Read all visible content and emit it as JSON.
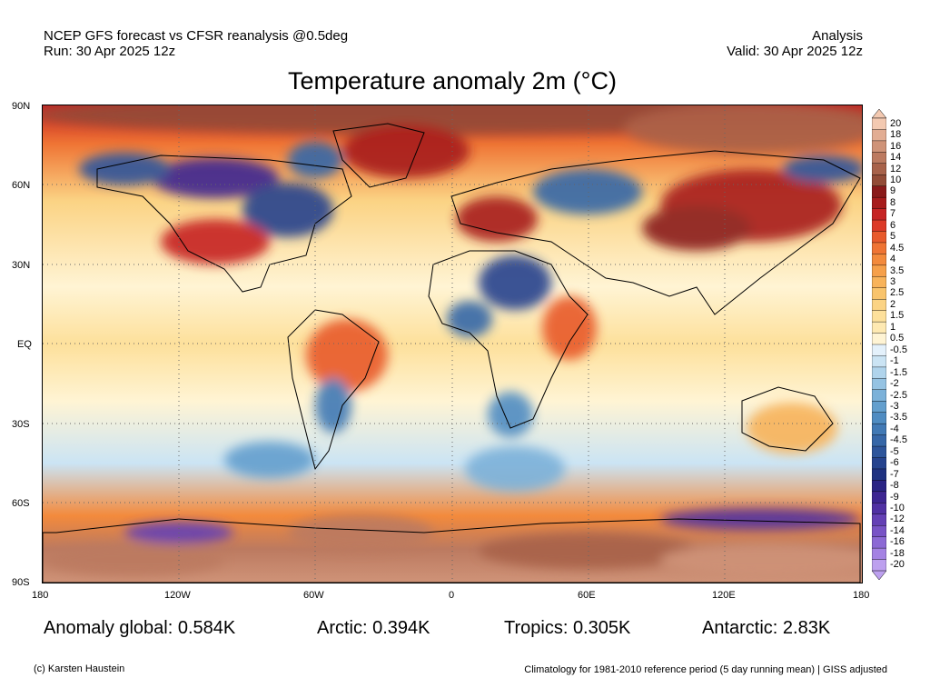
{
  "header": {
    "line1_left": "NCEP GFS forecast vs CFSR reanalysis @0.5deg",
    "line2_left": "Run: 30 Apr 2025 12z",
    "line1_right": "Analysis",
    "line2_right": "Valid: 30 Apr 2025 12z"
  },
  "title": "Temperature anomaly 2m (°C)",
  "axes": {
    "lat_ticks": [
      "90N",
      "60N",
      "30N",
      "EQ",
      "30S",
      "60S",
      "90S"
    ],
    "lon_ticks": [
      "180",
      "120W",
      "60W",
      "0",
      "60E",
      "120E",
      "180"
    ]
  },
  "colorbar": {
    "labels": [
      "20",
      "18",
      "16",
      "14",
      "12",
      "10",
      "9",
      "8",
      "7",
      "6",
      "5",
      "4.5",
      "4",
      "3.5",
      "3",
      "2.5",
      "2",
      "1.5",
      "1",
      "0.5",
      "-0.5",
      "-1",
      "-1.5",
      "-2",
      "-2.5",
      "-3",
      "-3.5",
      "-4",
      "-4.5",
      "-5",
      "-6",
      "-7",
      "-8",
      "-9",
      "-10",
      "-12",
      "-14",
      "-16",
      "-18",
      "-20"
    ],
    "colors": [
      "#f3c9b1",
      "#e2ad93",
      "#cf9378",
      "#bc7a60",
      "#a8624a",
      "#934c37",
      "#8a1a1a",
      "#a71c1c",
      "#c62424",
      "#dc3a27",
      "#e85a2c",
      "#ef7434",
      "#f38a3c",
      "#f6a04a",
      "#f8b35a",
      "#f9c46c",
      "#fbd384",
      "#fde09b",
      "#fee9b2",
      "#fff4d4",
      "#e4f1fb",
      "#cbe4f4",
      "#b0d4ec",
      "#95c3e3",
      "#7bb1d9",
      "#639fce",
      "#4f8cc2",
      "#4179b5",
      "#3667a8",
      "#2d559b",
      "#25438e",
      "#1f3282",
      "#2a2485",
      "#3d2592",
      "#5030a3",
      "#6440b5",
      "#7853c6",
      "#8c69d5",
      "#a482e3",
      "#bda0ef"
    ]
  },
  "stats": {
    "global": "Anomaly global: 0.584K",
    "arctic": "Arctic: 0.394K",
    "tropics": "Tropics: 0.305K",
    "antarctic": "Antarctic: 2.83K"
  },
  "footer": {
    "credit": "(c) Karsten Haustein",
    "note": "Climatology for 1981-2010 reference period (5 day running mean) | GISS adjusted"
  }
}
